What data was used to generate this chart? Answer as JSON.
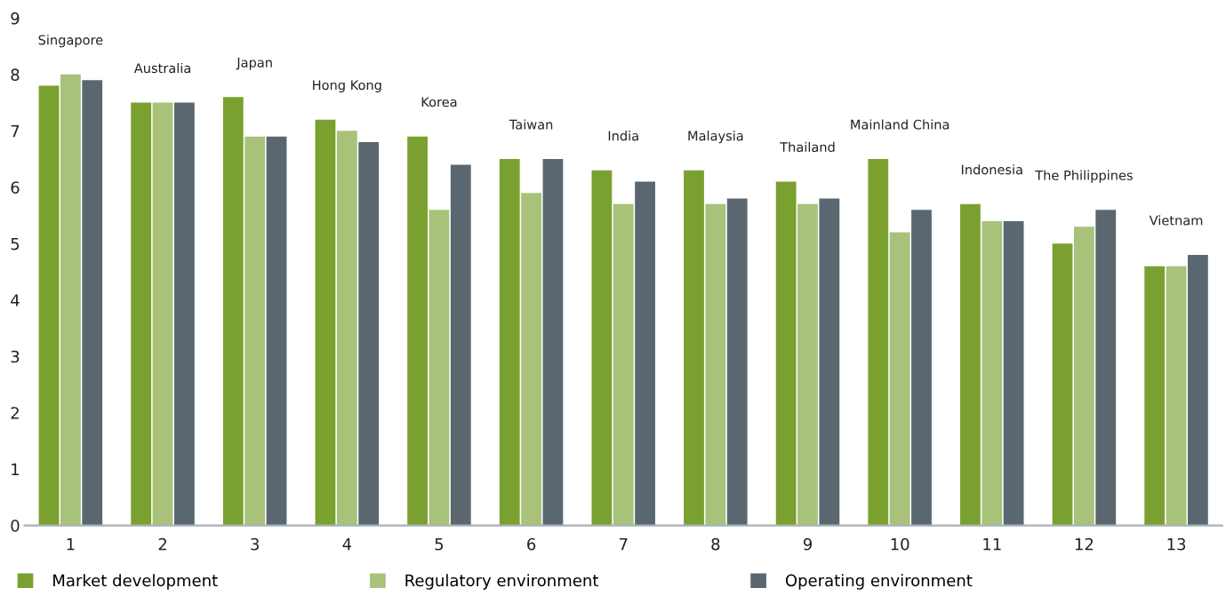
{
  "chart_data": {
    "type": "bar",
    "categories": [
      "1",
      "2",
      "3",
      "4",
      "5",
      "6",
      "7",
      "8",
      "9",
      "10",
      "11",
      "12",
      "13"
    ],
    "series": [
      {
        "name": "Market development",
        "color": "#7aa12f",
        "values": [
          7.8,
          7.5,
          7.6,
          7.2,
          6.9,
          6.5,
          6.3,
          6.3,
          6.1,
          6.5,
          5.7,
          5.0,
          4.6
        ]
      },
      {
        "name": "Regulatory environment",
        "color": "#a8c27a",
        "values": [
          8.0,
          7.5,
          6.9,
          7.0,
          5.6,
          5.9,
          5.7,
          5.7,
          5.7,
          5.2,
          5.4,
          5.3,
          4.6
        ]
      },
      {
        "name": "Operating environment",
        "color": "#5a6770",
        "values": [
          7.9,
          7.5,
          6.9,
          6.8,
          6.4,
          6.5,
          6.1,
          5.8,
          5.8,
          5.6,
          5.4,
          5.6,
          4.8
        ]
      }
    ],
    "ylim": [
      0,
      9
    ],
    "yticks": [
      0,
      1,
      2,
      3,
      4,
      5,
      6,
      7,
      8,
      9
    ],
    "grid": false,
    "legend": "bottom",
    "annotations": [
      "Singapore",
      "Australia",
      "Japan",
      "Hong Kong",
      "Korea",
      "Taiwan",
      "India",
      "Malaysia",
      "Thailand",
      "Mainland China",
      "Indonesia",
      "The Philippines",
      "Vietnam"
    ]
  }
}
